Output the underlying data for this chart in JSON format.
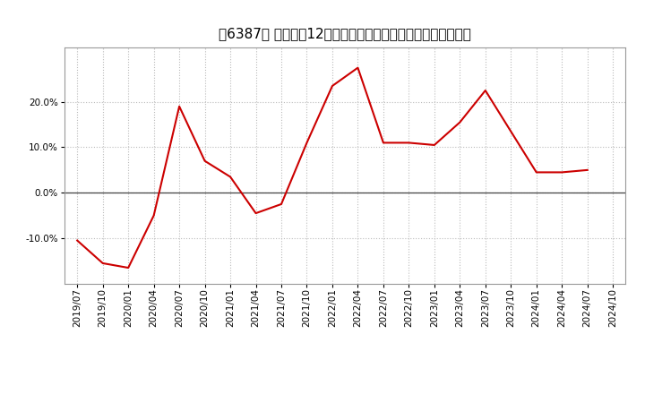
{
  "title": "［6387］ 売上高の12か月移動合計の対前年同期増減率の推移",
  "line_color": "#cc0000",
  "background_color": "#ffffff",
  "plot_bg_color": "#ffffff",
  "grid_color": "#bbbbbb",
  "dates": [
    "2019/07",
    "2019/10",
    "2020/01",
    "2020/04",
    "2020/07",
    "2020/10",
    "2021/01",
    "2021/04",
    "2021/07",
    "2021/10",
    "2022/01",
    "2022/04",
    "2022/07",
    "2022/10",
    "2023/01",
    "2023/04",
    "2023/07",
    "2023/10",
    "2024/01",
    "2024/04",
    "2024/07",
    "2024/10"
  ],
  "values": [
    -10.5,
    -15.5,
    -16.5,
    -5.0,
    19.0,
    7.0,
    3.5,
    -4.5,
    -2.5,
    11.0,
    23.5,
    27.5,
    11.0,
    11.0,
    10.5,
    15.5,
    22.5,
    13.5,
    4.5,
    4.5,
    5.0,
    null
  ],
  "yticks": [
    -10.0,
    0.0,
    10.0,
    20.0
  ],
  "ylim": [
    -20.0,
    32.0
  ],
  "tick_label_fontsize": 7.5,
  "title_fontsize": 11
}
